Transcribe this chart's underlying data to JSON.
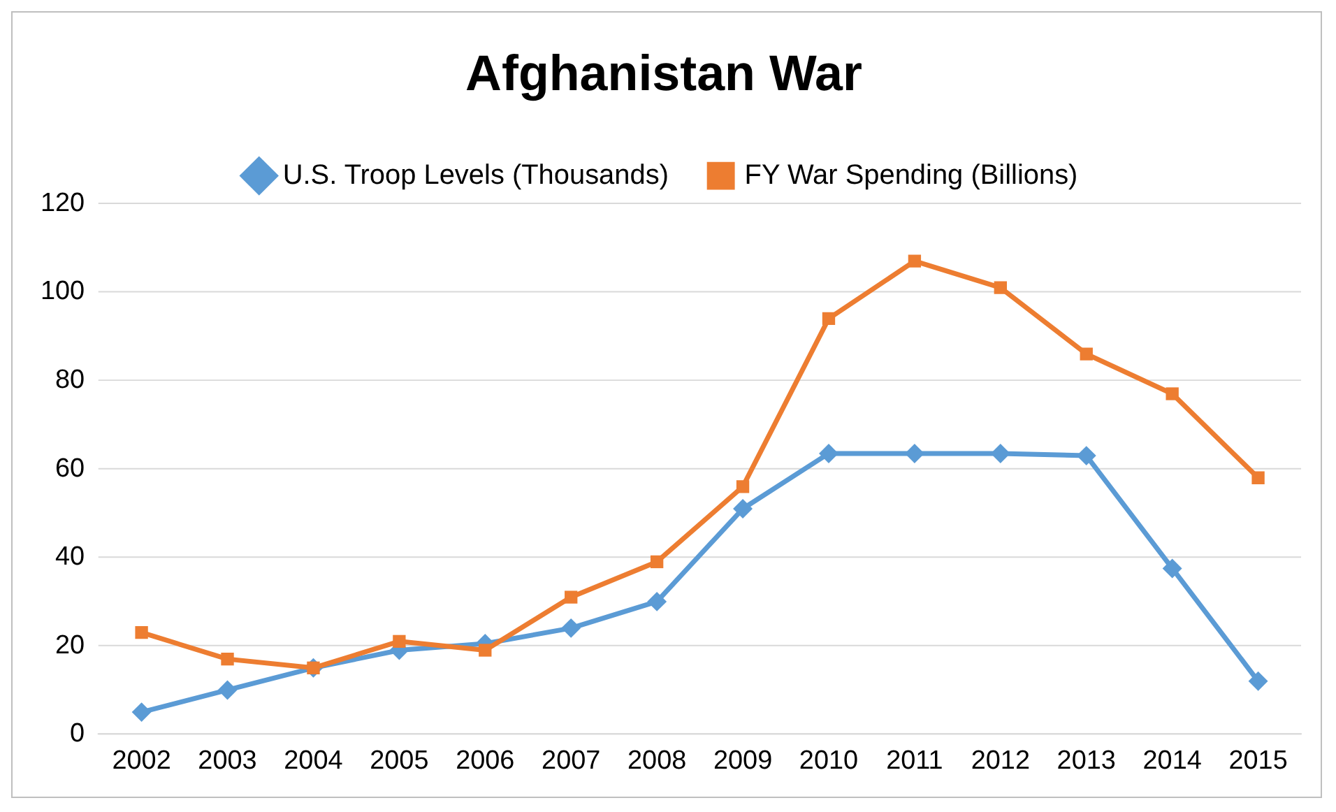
{
  "chart_data": {
    "type": "line",
    "title": "Afghanistan War",
    "categories": [
      "2002",
      "2003",
      "2004",
      "2005",
      "2006",
      "2007",
      "2008",
      "2009",
      "2010",
      "2011",
      "2012",
      "2013",
      "2014",
      "2015"
    ],
    "series": [
      {
        "name": "U.S. Troop Levels (Thousands)",
        "color": "#5b9bd5",
        "marker": "diamond",
        "values": [
          5,
          10,
          15,
          19,
          20.5,
          24,
          30,
          51,
          63.5,
          63.5,
          63.5,
          63,
          37.5,
          12
        ]
      },
      {
        "name": "FY War Spending (Billions)",
        "color": "#ed7d31",
        "marker": "square",
        "values": [
          23,
          17,
          15,
          21,
          19,
          31,
          39,
          56,
          94,
          107,
          101,
          86,
          77,
          58
        ]
      }
    ],
    "ylim": [
      0,
      120
    ],
    "yticks": [
      0,
      20,
      40,
      60,
      80,
      100,
      120
    ],
    "grid": "y",
    "legend": "top",
    "line_style": "solid"
  }
}
